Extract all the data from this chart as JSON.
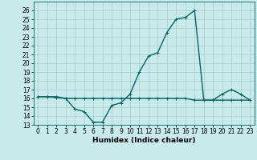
{
  "xlabel": "Humidex (Indice chaleur)",
  "ylabel": "",
  "x_values": [
    0,
    1,
    2,
    3,
    4,
    5,
    6,
    7,
    8,
    9,
    10,
    11,
    12,
    13,
    14,
    15,
    16,
    17,
    18,
    19,
    20,
    21,
    22,
    23
  ],
  "y_main": [
    16.2,
    16.2,
    16.2,
    16.0,
    14.8,
    14.5,
    13.3,
    13.3,
    15.2,
    15.5,
    16.5,
    19.0,
    20.8,
    21.2,
    23.5,
    25.0,
    25.2,
    26.0,
    15.8,
    15.8,
    16.5,
    17.0,
    16.5,
    15.8
  ],
  "y_flat": [
    16.2,
    16.2,
    16.1,
    16.0,
    16.0,
    16.0,
    16.0,
    16.0,
    16.0,
    16.0,
    16.0,
    16.0,
    16.0,
    16.0,
    16.0,
    16.0,
    16.0,
    15.8,
    15.8,
    15.8,
    15.8,
    15.8,
    15.8,
    15.8
  ],
  "ylim": [
    13,
    27
  ],
  "xlim": [
    -0.5,
    23.5
  ],
  "yticks": [
    13,
    14,
    15,
    16,
    17,
    18,
    19,
    20,
    21,
    22,
    23,
    24,
    25,
    26
  ],
  "xticks": [
    0,
    1,
    2,
    3,
    4,
    5,
    6,
    7,
    8,
    9,
    10,
    11,
    12,
    13,
    14,
    15,
    16,
    17,
    18,
    19,
    20,
    21,
    22,
    23
  ],
  "line_color": "#006666",
  "bg_color": "#c8eaea",
  "grid_color": "#b0c8c8",
  "marker": "+",
  "marker_size": 3,
  "linewidth": 1.0,
  "label_fontsize": 6.5,
  "tick_fontsize": 5.5
}
